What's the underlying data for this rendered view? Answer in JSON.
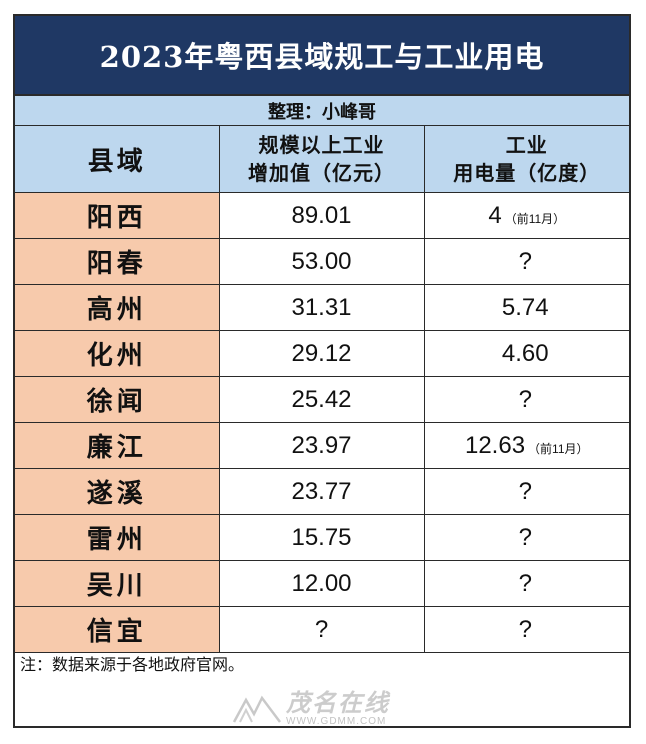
{
  "title": "2023年粤西县域规工与工业用电",
  "compiler": "整理：小峰哥",
  "headers": {
    "county": "县域",
    "output_line1": "规模以上工业",
    "output_line2": "增加值（亿元）",
    "power_line1": "工业",
    "power_line2": "用电量（亿度）"
  },
  "rows": [
    {
      "county": "阳西",
      "output": "89.01",
      "power": "4",
      "power_note": "（前11月）"
    },
    {
      "county": "阳春",
      "output": "53.00",
      "power": "?",
      "power_note": ""
    },
    {
      "county": "高州",
      "output": "31.31",
      "power": "5.74",
      "power_note": ""
    },
    {
      "county": "化州",
      "output": "29.12",
      "power": "4.60",
      "power_note": ""
    },
    {
      "county": "徐闻",
      "output": "25.42",
      "power": "?",
      "power_note": ""
    },
    {
      "county": "廉江",
      "output": "23.97",
      "power": "12.63",
      "power_note": "（前11月）"
    },
    {
      "county": "遂溪",
      "output": "23.77",
      "power": "?",
      "power_note": ""
    },
    {
      "county": "雷州",
      "output": "15.75",
      "power": "?",
      "power_note": ""
    },
    {
      "county": "吴川",
      "output": "12.00",
      "power": "?",
      "power_note": ""
    },
    {
      "county": "信宜",
      "output": "?",
      "power": "?",
      "power_note": ""
    }
  ],
  "footnote": "注：数据来源于各地政府官网。",
  "watermark": {
    "name": "茂名在线",
    "url": "WWW.GDMM.COM"
  },
  "colors": {
    "title_bg": "#1f3864",
    "header_bg": "#bdd7ee",
    "county_bg": "#f7caac"
  }
}
